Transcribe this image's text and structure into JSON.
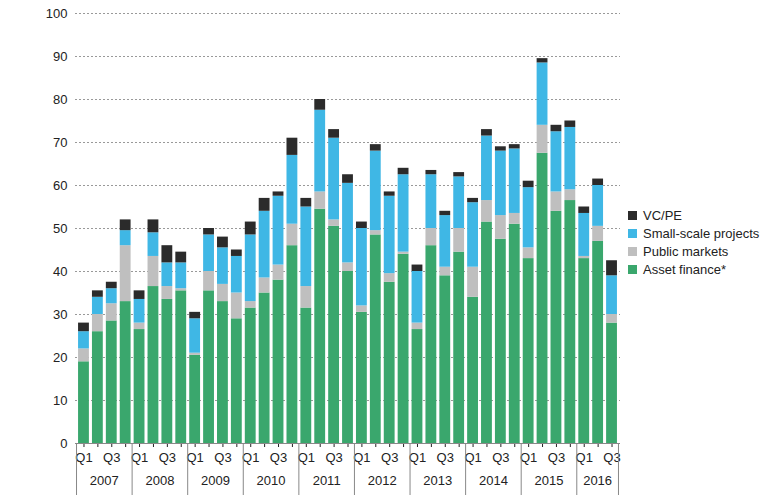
{
  "chart_data": {
    "type": "bar",
    "stacked": true,
    "grid": true,
    "legend": "right",
    "categories": [
      "Q1",
      null,
      "Q3",
      null,
      "Q1",
      null,
      "Q3",
      null,
      "Q1",
      null,
      "Q3",
      null,
      "Q1",
      null,
      "Q3",
      null,
      "Q1",
      null,
      "Q3",
      null,
      "Q1",
      null,
      "Q3",
      null,
      "Q1",
      null,
      "Q3",
      null,
      "Q1",
      null,
      "Q3",
      null,
      "Q1",
      null,
      "Q3",
      null,
      "Q1",
      null,
      "Q3"
    ],
    "years": [
      "2007",
      "2007",
      "2007",
      "2007",
      "2008",
      "2008",
      "2008",
      "2008",
      "2009",
      "2009",
      "2009",
      "2009",
      "2010",
      "2010",
      "2010",
      "2010",
      "2011",
      "2011",
      "2011",
      "2011",
      "2012",
      "2012",
      "2012",
      "2012",
      "2013",
      "2013",
      "2013",
      "2013",
      "2014",
      "2014",
      "2014",
      "2014",
      "2015",
      "2015",
      "2015",
      "2015",
      "2016",
      "2016",
      "2016"
    ],
    "ylim": [
      0,
      100
    ],
    "yticks": [
      0,
      10,
      20,
      30,
      40,
      50,
      60,
      70,
      80,
      90,
      100
    ],
    "series": [
      {
        "name": "Asset finance*",
        "color": "#3aa76d",
        "values": [
          19,
          26,
          28.5,
          33,
          26.5,
          36.5,
          33.5,
          35.5,
          20.5,
          35.5,
          33,
          29,
          31.5,
          35,
          38,
          46,
          31.5,
          54.5,
          50.5,
          40,
          30.5,
          48.5,
          37.5,
          44,
          26.5,
          46,
          39,
          44.5,
          34,
          51.5,
          47.5,
          51,
          43,
          67.5,
          54,
          56.5,
          43,
          47,
          28
        ]
      },
      {
        "name": "Public markets",
        "color": "#bfbfbf",
        "values": [
          3,
          4,
          4,
          13,
          1.5,
          7,
          3,
          0.5,
          0.5,
          4.5,
          4,
          6,
          1.5,
          3.5,
          3.5,
          5,
          5,
          4,
          1.5,
          2,
          1.5,
          1,
          2,
          0.5,
          1.5,
          4,
          2,
          5.5,
          7,
          5,
          5.5,
          2.5,
          2.5,
          6.5,
          4.5,
          2.5,
          0.5,
          3.5,
          2
        ]
      },
      {
        "name": "Small-scale projects",
        "color": "#3fb7e5",
        "values": [
          4,
          4,
          3.5,
          3.5,
          5.5,
          5.5,
          5.5,
          6,
          8,
          8.5,
          8.5,
          8.5,
          15.5,
          15.5,
          16,
          16,
          18.5,
          19,
          19,
          18.5,
          18,
          18.5,
          18,
          18,
          12,
          12.5,
          12,
          12,
          15,
          15,
          15,
          15,
          14,
          14.5,
          14,
          14.5,
          10,
          9.5,
          9
        ]
      },
      {
        "name": "VC/PE",
        "color": "#2b2b2b",
        "values": [
          2,
          1.5,
          1.5,
          2.5,
          2,
          3,
          4,
          2.5,
          1.5,
          1.5,
          2.5,
          1.5,
          3,
          3,
          1,
          4,
          2,
          2.5,
          2,
          2,
          1.5,
          1.5,
          1,
          1.5,
          1.5,
          1,
          1,
          1,
          1,
          1.5,
          1,
          1,
          1.5,
          1,
          1.5,
          1.5,
          1.5,
          1.5,
          3.5
        ]
      }
    ]
  }
}
